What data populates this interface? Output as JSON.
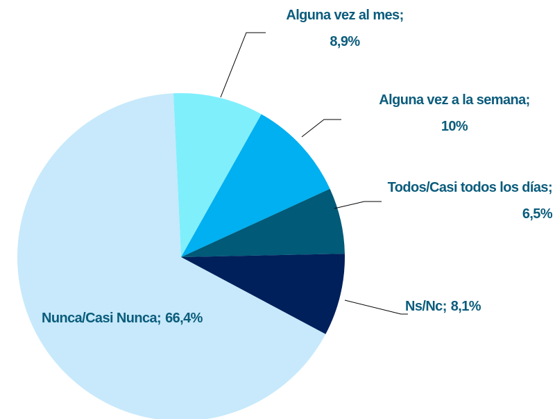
{
  "chart_data": {
    "type": "pie",
    "categories": [
      "Alguna vez al mes",
      "Alguna vez a la semana",
      "Todos/Casi todos los días",
      "Ns/Nc",
      "Nunca/Casi Nunca"
    ],
    "values": [
      8.9,
      10,
      6.5,
      8.1,
      66.4
    ],
    "value_labels": [
      "8,9%",
      "10%",
      "6,5%",
      "8,1%",
      "66,4%"
    ],
    "label_separator": ";",
    "colors": [
      "#80effc",
      "#00b0f0",
      "#005a78",
      "#00205b",
      "#c7e9fb"
    ],
    "label_color": "#0b5c7c"
  }
}
